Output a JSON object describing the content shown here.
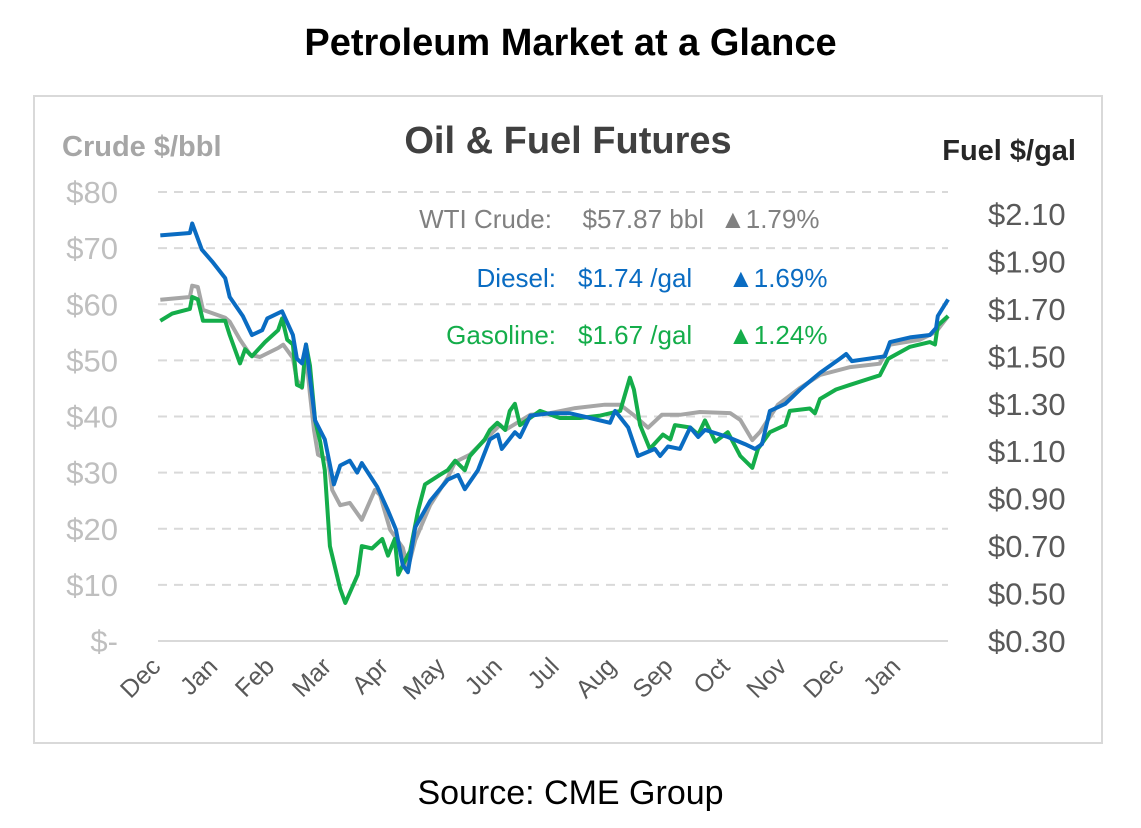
{
  "page": {
    "title": "Petroleum Market at a Glance",
    "source": "Source: CME Group"
  },
  "chart_data": {
    "type": "line",
    "title": "Oil & Fuel Futures",
    "ylabel_left": "Crude $/bbl",
    "ylabel_right": "Fuel $/gal",
    "x_unit": "months since start of December (0 = Dec, 13 = Jan of following year)",
    "x_ticks": [
      "Dec",
      "Jan",
      "Feb",
      "Mar",
      "Apr",
      "May",
      "Jun",
      "Jul",
      "Aug",
      "Sep",
      "Oct",
      "Nov",
      "Dec",
      "Jan"
    ],
    "y_left_ticks": [
      "$-",
      "$10",
      "$20",
      "$30",
      "$40",
      "$50",
      "$60",
      "$70",
      "$80"
    ],
    "y_left_range": [
      0,
      80
    ],
    "y_right_ticks": [
      "$0.30",
      "$0.50",
      "$0.70",
      "$0.90",
      "$1.10",
      "$1.30",
      "$1.50",
      "$1.70",
      "$1.90",
      "$2.10"
    ],
    "y_right_range": [
      0.3,
      2.2
    ],
    "grid": "horizontal dashed",
    "colors": {
      "crude": "#a6a6a6",
      "diesel": "#0a6cc2",
      "gasoline": "#14ad4a",
      "crude_text": "#808080"
    },
    "annotations": [
      {
        "label": "WTI Crude:",
        "value": "$57.87 bbl",
        "change": "▲1.79%",
        "series": "crude"
      },
      {
        "label": "Diesel:",
        "value": "$1.74 /gal",
        "change": "▲1.69%",
        "series": "diesel"
      },
      {
        "label": "Gasoline:",
        "value": "$1.67 /gal",
        "change": "▲1.24%",
        "series": "gasoline"
      }
    ],
    "series": [
      {
        "name": "WTI Crude",
        "axis": "left",
        "key": "crude",
        "points": [
          [
            0.04,
            60.8
          ],
          [
            0.56,
            61.3
          ],
          [
            0.6,
            63.3
          ],
          [
            0.7,
            63.1
          ],
          [
            0.79,
            59.0
          ],
          [
            1.18,
            57.6
          ],
          [
            1.26,
            56.9
          ],
          [
            1.44,
            53.7
          ],
          [
            1.62,
            51.0
          ],
          [
            1.79,
            50.6
          ],
          [
            2.11,
            52.2
          ],
          [
            2.2,
            52.8
          ],
          [
            2.37,
            50.4
          ],
          [
            2.44,
            46.5
          ],
          [
            2.53,
            45.1
          ],
          [
            2.6,
            51.0
          ],
          [
            2.67,
            43.9
          ],
          [
            2.74,
            37.6
          ],
          [
            2.81,
            33.2
          ],
          [
            2.99,
            32.3
          ],
          [
            3.06,
            26.9
          ],
          [
            3.2,
            24.2
          ],
          [
            3.37,
            24.6
          ],
          [
            3.58,
            21.6
          ],
          [
            3.81,
            26.9
          ],
          [
            3.9,
            26.0
          ],
          [
            4.08,
            19.8
          ],
          [
            4.3,
            16.6
          ],
          [
            4.39,
            13.0
          ],
          [
            4.52,
            18.0
          ],
          [
            4.78,
            24.2
          ],
          [
            5.09,
            29.1
          ],
          [
            5.22,
            31.9
          ],
          [
            5.48,
            33.2
          ],
          [
            5.74,
            35.8
          ],
          [
            6.01,
            38.5
          ],
          [
            6.1,
            37.6
          ],
          [
            6.54,
            40.3
          ],
          [
            6.89,
            40.6
          ],
          [
            7.33,
            41.5
          ],
          [
            7.85,
            42.1
          ],
          [
            8.12,
            42.1
          ],
          [
            8.35,
            40.3
          ],
          [
            8.61,
            38.0
          ],
          [
            8.85,
            40.3
          ],
          [
            9.17,
            40.3
          ],
          [
            9.52,
            40.8
          ],
          [
            10.05,
            40.6
          ],
          [
            10.23,
            39.4
          ],
          [
            10.44,
            35.8
          ],
          [
            10.58,
            37.3
          ],
          [
            10.89,
            42.1
          ],
          [
            11.28,
            45.1
          ],
          [
            11.63,
            47.4
          ],
          [
            12.16,
            48.8
          ],
          [
            12.68,
            49.4
          ],
          [
            12.86,
            52.8
          ],
          [
            13.39,
            53.7
          ],
          [
            13.67,
            55.1
          ],
          [
            13.88,
            57.87
          ]
        ]
      },
      {
        "name": "Diesel",
        "axis": "right",
        "key": "diesel",
        "points": [
          [
            0.04,
            2.01
          ],
          [
            0.56,
            2.02
          ],
          [
            0.6,
            2.06
          ],
          [
            0.77,
            1.95
          ],
          [
            0.95,
            1.9
          ],
          [
            1.18,
            1.83
          ],
          [
            1.26,
            1.75
          ],
          [
            1.49,
            1.67
          ],
          [
            1.65,
            1.59
          ],
          [
            1.83,
            1.61
          ],
          [
            1.92,
            1.66
          ],
          [
            2.18,
            1.69
          ],
          [
            2.37,
            1.59
          ],
          [
            2.44,
            1.49
          ],
          [
            2.53,
            1.47
          ],
          [
            2.6,
            1.55
          ],
          [
            2.76,
            1.23
          ],
          [
            2.93,
            1.15
          ],
          [
            3.09,
            0.96
          ],
          [
            3.2,
            1.04
          ],
          [
            3.37,
            1.06
          ],
          [
            3.5,
            1.01
          ],
          [
            3.58,
            1.05
          ],
          [
            3.85,
            0.95
          ],
          [
            4.04,
            0.85
          ],
          [
            4.18,
            0.77
          ],
          [
            4.3,
            0.62
          ],
          [
            4.39,
            0.59
          ],
          [
            4.52,
            0.78
          ],
          [
            4.78,
            0.89
          ],
          [
            5.09,
            0.98
          ],
          [
            5.27,
            1.0
          ],
          [
            5.39,
            0.94
          ],
          [
            5.62,
            1.02
          ],
          [
            5.83,
            1.15
          ],
          [
            5.97,
            1.17
          ],
          [
            6.04,
            1.11
          ],
          [
            6.27,
            1.18
          ],
          [
            6.36,
            1.16
          ],
          [
            6.54,
            1.25
          ],
          [
            6.89,
            1.26
          ],
          [
            7.24,
            1.26
          ],
          [
            7.59,
            1.24
          ],
          [
            7.94,
            1.22
          ],
          [
            8.03,
            1.27
          ],
          [
            8.26,
            1.2
          ],
          [
            8.43,
            1.08
          ],
          [
            8.73,
            1.11
          ],
          [
            8.82,
            1.08
          ],
          [
            8.96,
            1.12
          ],
          [
            9.17,
            1.11
          ],
          [
            9.35,
            1.2
          ],
          [
            9.49,
            1.16
          ],
          [
            9.61,
            1.19
          ],
          [
            10.01,
            1.16
          ],
          [
            10.31,
            1.13
          ],
          [
            10.49,
            1.11
          ],
          [
            10.61,
            1.13
          ],
          [
            10.75,
            1.27
          ],
          [
            11.02,
            1.3
          ],
          [
            11.28,
            1.36
          ],
          [
            11.63,
            1.43
          ],
          [
            11.98,
            1.49
          ],
          [
            12.09,
            1.51
          ],
          [
            12.19,
            1.48
          ],
          [
            12.77,
            1.5
          ],
          [
            12.86,
            1.56
          ],
          [
            13.21,
            1.58
          ],
          [
            13.56,
            1.59
          ],
          [
            13.67,
            1.62
          ],
          [
            13.7,
            1.67
          ],
          [
            13.88,
            1.74
          ]
        ]
      },
      {
        "name": "Gasoline",
        "axis": "right",
        "key": "gasoline",
        "points": [
          [
            0.04,
            1.65
          ],
          [
            0.25,
            1.68
          ],
          [
            0.56,
            1.7
          ],
          [
            0.6,
            1.75
          ],
          [
            0.7,
            1.74
          ],
          [
            0.79,
            1.65
          ],
          [
            1.18,
            1.65
          ],
          [
            1.26,
            1.59
          ],
          [
            1.44,
            1.47
          ],
          [
            1.53,
            1.53
          ],
          [
            1.65,
            1.5
          ],
          [
            1.88,
            1.56
          ],
          [
            2.11,
            1.61
          ],
          [
            2.18,
            1.66
          ],
          [
            2.27,
            1.57
          ],
          [
            2.37,
            1.55
          ],
          [
            2.44,
            1.38
          ],
          [
            2.53,
            1.37
          ],
          [
            2.6,
            1.55
          ],
          [
            2.67,
            1.46
          ],
          [
            2.76,
            1.23
          ],
          [
            2.85,
            1.14
          ],
          [
            2.93,
            1.02
          ],
          [
            3.02,
            0.7
          ],
          [
            3.2,
            0.52
          ],
          [
            3.29,
            0.46
          ],
          [
            3.51,
            0.58
          ],
          [
            3.58,
            0.7
          ],
          [
            3.76,
            0.69
          ],
          [
            3.94,
            0.73
          ],
          [
            4.04,
            0.66
          ],
          [
            4.16,
            0.73
          ],
          [
            4.22,
            0.58
          ],
          [
            4.3,
            0.62
          ],
          [
            4.43,
            0.68
          ],
          [
            4.57,
            0.85
          ],
          [
            4.69,
            0.96
          ],
          [
            4.95,
            1.0
          ],
          [
            5.09,
            1.02
          ],
          [
            5.22,
            1.06
          ],
          [
            5.39,
            1.02
          ],
          [
            5.48,
            1.08
          ],
          [
            5.74,
            1.15
          ],
          [
            5.83,
            1.19
          ],
          [
            5.96,
            1.22
          ],
          [
            6.1,
            1.19
          ],
          [
            6.18,
            1.27
          ],
          [
            6.27,
            1.3
          ],
          [
            6.36,
            1.21
          ],
          [
            6.71,
            1.27
          ],
          [
            7.06,
            1.24
          ],
          [
            7.41,
            1.24
          ],
          [
            7.77,
            1.25
          ],
          [
            8.12,
            1.27
          ],
          [
            8.29,
            1.41
          ],
          [
            8.36,
            1.36
          ],
          [
            8.47,
            1.21
          ],
          [
            8.64,
            1.11
          ],
          [
            8.87,
            1.17
          ],
          [
            9.0,
            1.15
          ],
          [
            9.08,
            1.21
          ],
          [
            9.35,
            1.2
          ],
          [
            9.49,
            1.17
          ],
          [
            9.61,
            1.23
          ],
          [
            9.79,
            1.14
          ],
          [
            10.01,
            1.18
          ],
          [
            10.23,
            1.08
          ],
          [
            10.44,
            1.03
          ],
          [
            10.54,
            1.11
          ],
          [
            10.75,
            1.18
          ],
          [
            11.02,
            1.21
          ],
          [
            11.1,
            1.27
          ],
          [
            11.45,
            1.28
          ],
          [
            11.54,
            1.26
          ],
          [
            11.63,
            1.32
          ],
          [
            11.91,
            1.36
          ],
          [
            12.16,
            1.38
          ],
          [
            12.68,
            1.42
          ],
          [
            12.83,
            1.49
          ],
          [
            13.21,
            1.54
          ],
          [
            13.56,
            1.56
          ],
          [
            13.65,
            1.55
          ],
          [
            13.7,
            1.63
          ],
          [
            13.88,
            1.67
          ]
        ]
      }
    ]
  }
}
